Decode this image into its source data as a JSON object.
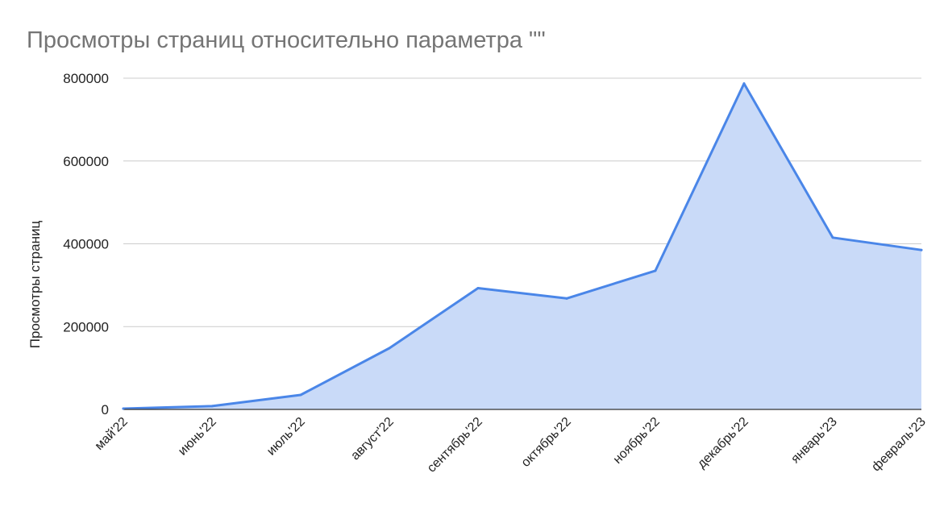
{
  "chart_data": {
    "type": "area",
    "title": "Просмотры страниц относительно параметра \"\"",
    "xlabel": "",
    "ylabel": "Просмотры страниц",
    "categories": [
      "май'22",
      "июнь'22",
      "июль'22",
      "август'22",
      "сентябрь'22",
      "октябрь'22",
      "ноябрь'22",
      "декабрь'22",
      "январь'23",
      "февраль'23"
    ],
    "series": [
      {
        "values": [
          2000,
          8000,
          35000,
          148000,
          293000,
          268000,
          335000,
          787000,
          415000,
          385000
        ]
      }
    ],
    "ylim": [
      0,
      800000
    ],
    "yticks": [
      0,
      200000,
      400000,
      600000,
      800000
    ],
    "grid": true,
    "colors": {
      "line": "#4a86e8",
      "fill": "#c9daf8",
      "grid": "#cccccc",
      "title": "#757575"
    }
  }
}
